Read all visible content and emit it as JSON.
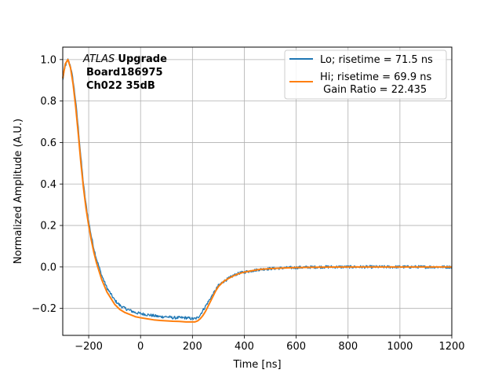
{
  "chart_data": {
    "type": "line",
    "xlabel": "Time [ns]",
    "ylabel": "Normalized Amplitude (A.U.)",
    "xlim": [
      -300,
      1200
    ],
    "ylim": [
      -0.33,
      1.06
    ],
    "x_ticks": [
      -200,
      0,
      200,
      400,
      600,
      800,
      1000,
      1200
    ],
    "x_tick_labels": [
      "−200",
      "0",
      "200",
      "400",
      "600",
      "800",
      "1000",
      "1200"
    ],
    "y_ticks": [
      -0.2,
      0.0,
      0.2,
      0.4,
      0.6,
      0.8,
      1.0
    ],
    "y_tick_labels": [
      "−0.2",
      "0.0",
      "0.2",
      "0.4",
      "0.6",
      "0.8",
      "1.0"
    ],
    "grid": true,
    "legend_position": "top-right",
    "annotation": {
      "atlas": "ATLAS",
      "upgrade": "Upgrade",
      "board": "Board186975",
      "channel": "Ch022 35dB"
    },
    "series": [
      {
        "name": "Lo; risetime = 71.5 ns",
        "color": "#1f77b4",
        "noisy": true,
        "x": [
          -300,
          -290,
          -280,
          -270,
          -260,
          -250,
          -240,
          -230,
          -220,
          -210,
          -200,
          -190,
          -180,
          -170,
          -160,
          -150,
          -140,
          -130,
          -120,
          -110,
          -100,
          -80,
          -60,
          -40,
          -20,
          0,
          25,
          50,
          75,
          100,
          125,
          150,
          175,
          200,
          210,
          220,
          230,
          240,
          250,
          260,
          270,
          280,
          290,
          300,
          320,
          340,
          360,
          380,
          400,
          430,
          460,
          500,
          550,
          600,
          650,
          700,
          800,
          900,
          1000,
          1100,
          1200
        ],
        "y": [
          0.9,
          0.97,
          1.0,
          0.97,
          0.9,
          0.8,
          0.67,
          0.53,
          0.4,
          0.3,
          0.22,
          0.15,
          0.09,
          0.04,
          0.0,
          -0.04,
          -0.07,
          -0.1,
          -0.12,
          -0.14,
          -0.16,
          -0.185,
          -0.2,
          -0.21,
          -0.22,
          -0.225,
          -0.23,
          -0.235,
          -0.24,
          -0.24,
          -0.245,
          -0.245,
          -0.245,
          -0.25,
          -0.25,
          -0.245,
          -0.23,
          -0.21,
          -0.19,
          -0.17,
          -0.15,
          -0.13,
          -0.11,
          -0.09,
          -0.07,
          -0.055,
          -0.04,
          -0.03,
          -0.025,
          -0.018,
          -0.012,
          -0.008,
          -0.005,
          -0.003,
          -0.001,
          0.0,
          0.0,
          0.0,
          0.0,
          0.0,
          0.0
        ]
      },
      {
        "name": "Hi; risetime = 69.9 ns\n Gain Ratio = 22.435",
        "color": "#ff7f0e",
        "noisy": false,
        "x": [
          -300,
          -290,
          -280,
          -270,
          -260,
          -250,
          -240,
          -230,
          -220,
          -210,
          -200,
          -190,
          -180,
          -170,
          -160,
          -150,
          -140,
          -130,
          -120,
          -110,
          -100,
          -80,
          -60,
          -40,
          -20,
          0,
          25,
          50,
          75,
          100,
          125,
          150,
          175,
          200,
          210,
          220,
          230,
          240,
          250,
          260,
          270,
          280,
          290,
          300,
          320,
          340,
          360,
          380,
          400,
          430,
          460,
          500,
          550,
          600,
          650,
          700,
          800,
          900,
          1000,
          1100,
          1200
        ],
        "y": [
          0.91,
          0.98,
          1.0,
          0.96,
          0.88,
          0.77,
          0.64,
          0.5,
          0.38,
          0.28,
          0.2,
          0.13,
          0.07,
          0.02,
          -0.02,
          -0.06,
          -0.09,
          -0.12,
          -0.14,
          -0.16,
          -0.18,
          -0.205,
          -0.22,
          -0.23,
          -0.24,
          -0.245,
          -0.25,
          -0.255,
          -0.258,
          -0.26,
          -0.262,
          -0.263,
          -0.265,
          -0.265,
          -0.265,
          -0.26,
          -0.25,
          -0.235,
          -0.215,
          -0.19,
          -0.165,
          -0.14,
          -0.115,
          -0.095,
          -0.07,
          -0.055,
          -0.042,
          -0.032,
          -0.025,
          -0.018,
          -0.012,
          -0.008,
          -0.005,
          -0.003,
          -0.002,
          -0.001,
          0.0,
          0.0,
          0.0,
          0.0,
          0.0
        ]
      }
    ]
  }
}
